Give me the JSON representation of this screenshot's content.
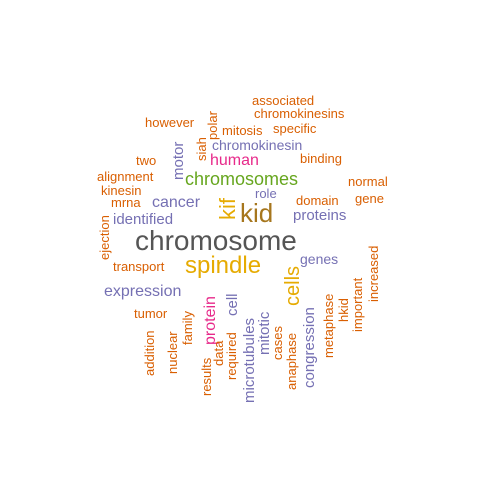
{
  "colors": {
    "orange": "#d95f02",
    "purple": "#7570b3",
    "magenta": "#e7298a",
    "green": "#66a61e",
    "gold": "#e6ab02",
    "brown": "#a6761d",
    "gray": "#555555"
  },
  "words": {
    "chromosome": "chromosome",
    "spindle": "spindle",
    "kid": "kid",
    "chromosomes": "chromosomes",
    "cells": "cells",
    "kif": "kif",
    "human": "human",
    "protein": "protein",
    "cancer": "cancer",
    "proteins": "proteins",
    "expression": "expression",
    "identified": "identified",
    "genes": "genes",
    "chromokinesin": "chromokinesin",
    "motor": "motor",
    "cell": "cell",
    "microtubules": "microtubules",
    "mitotic": "mitotic",
    "congression": "congression",
    "associated": "associated",
    "chromokinesins": "chromokinesins",
    "however": "however",
    "polar": "polar",
    "mitosis": "mitosis",
    "specific": "specific",
    "siah": "siah",
    "binding": "binding",
    "two": "two",
    "alignment": "alignment",
    "normal": "normal",
    "kinesin": "kinesin",
    "role": "role",
    "mrna": "mrna",
    "domain": "domain",
    "gene": "gene",
    "ejection": "ejection",
    "transport": "transport",
    "increased": "increased",
    "tumor": "tumor",
    "nuclear": "nuclear",
    "family": "family",
    "addition": "addition",
    "results": "results",
    "data": "data",
    "required": "required",
    "cases": "cases",
    "anaphase": "anaphase",
    "metaphase": "metaphase",
    "hkid": "hkid",
    "important": "important"
  }
}
